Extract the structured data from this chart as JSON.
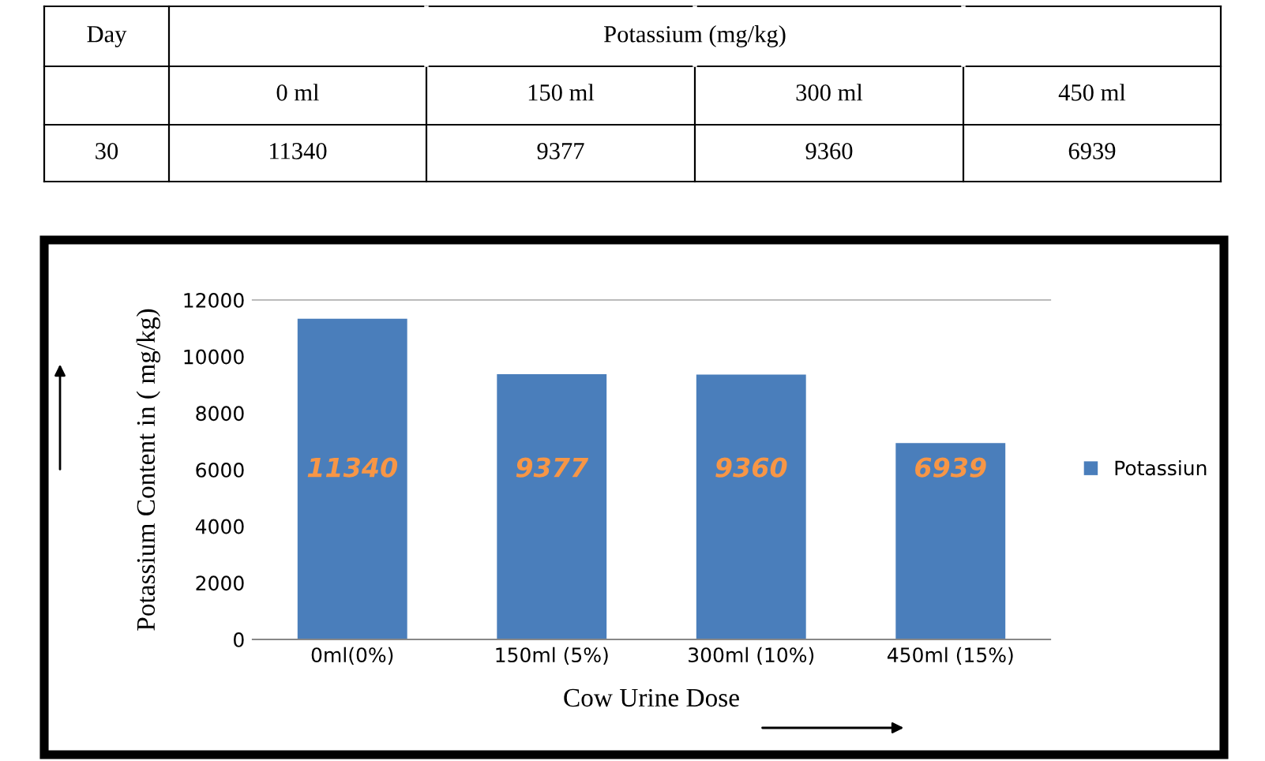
{
  "chart_data": {
    "type": "bar",
    "categories": [
      "0ml(0%)",
      "150ml (5%)",
      "300ml (10%)",
      "450ml (15%)"
    ],
    "series": [
      {
        "name": "Potassiun",
        "color": "#4a7ebb",
        "values": [
          11340,
          9377,
          9360,
          6939
        ]
      }
    ],
    "ylabel": "Potassium Content in ( mg/kg)",
    "xlabel": "Cow Urine Dose",
    "ylim": [
      0,
      12000
    ],
    "yticks": [
      0,
      2000,
      4000,
      6000,
      8000,
      10000,
      12000
    ],
    "grid": false,
    "legend": "right",
    "data_labels": true,
    "annotations": [
      "Day",
      "Potassium (mg/kg)",
      "0 ml",
      "150 ml",
      "300 ml",
      "450 ml",
      "30",
      "11340",
      "9377",
      "9360",
      "6939"
    ]
  }
}
